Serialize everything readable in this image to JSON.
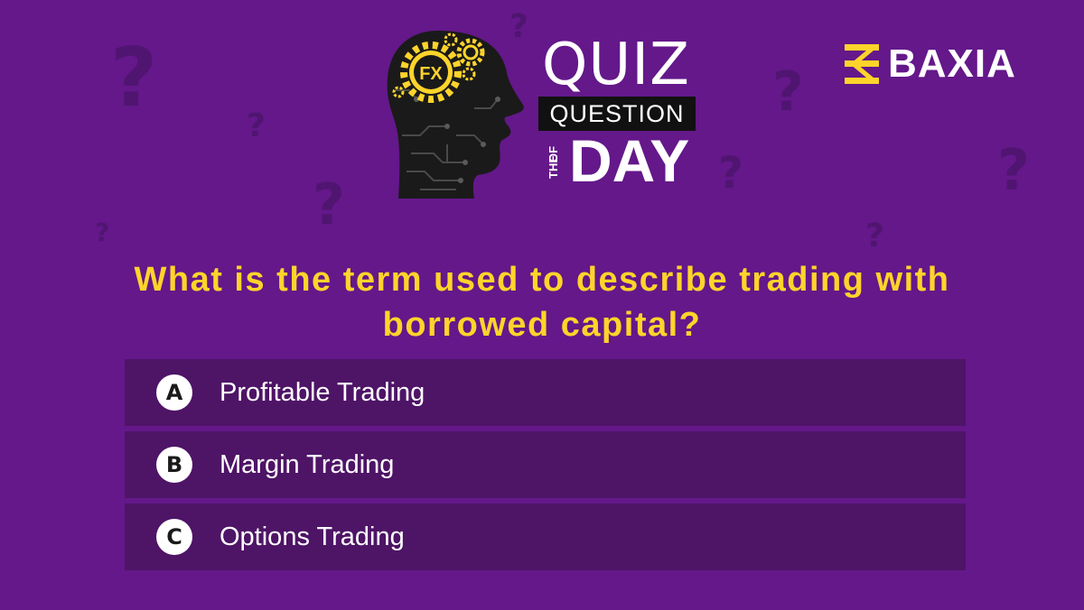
{
  "header": {
    "quiz": "QUIZ",
    "question": "QUESTION",
    "of": "OF",
    "the": "THE",
    "day": "DAY",
    "badge_text": "FX"
  },
  "brand": {
    "name": "BAXIA",
    "icon": "baxia-logo-icon"
  },
  "question": {
    "text": "What is the term used to describe trading with borrowed capital?"
  },
  "options": [
    {
      "letter": "A",
      "label": "Profitable Trading"
    },
    {
      "letter": "B",
      "label": "Margin Trading"
    },
    {
      "letter": "C",
      "label": "Options Trading"
    }
  ],
  "colors": {
    "background": "#64188a",
    "option_background": "#4e1466",
    "question_text": "#ffd42a",
    "accent": "#ffd42a",
    "question_marks": "#501570"
  }
}
